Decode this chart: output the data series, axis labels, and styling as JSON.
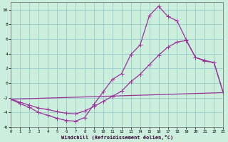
{
  "xlabel": "Windchill (Refroidissement éolien,°C)",
  "background_color": "#cceedd",
  "grid_color": "#99cccc",
  "line_color": "#993399",
  "xlim": [
    0,
    23
  ],
  "ylim": [
    -6,
    11
  ],
  "xticks": [
    0,
    1,
    2,
    3,
    4,
    5,
    6,
    7,
    8,
    9,
    10,
    11,
    12,
    13,
    14,
    15,
    16,
    17,
    18,
    19,
    20,
    21,
    22,
    23
  ],
  "yticks": [
    -6,
    -4,
    -2,
    0,
    2,
    4,
    6,
    8,
    10
  ],
  "line1_x": [
    0,
    1,
    2,
    3,
    4,
    5,
    6,
    7,
    8,
    9,
    10,
    11,
    12,
    13,
    14,
    15,
    16,
    17,
    18,
    19,
    20,
    21,
    22,
    23
  ],
  "line1_y": [
    -2.2,
    -2.8,
    -3.3,
    -4.0,
    -4.4,
    -4.8,
    -5.1,
    -5.2,
    -4.7,
    -2.9,
    -1.2,
    0.5,
    1.3,
    3.9,
    5.2,
    9.2,
    10.5,
    9.1,
    8.5,
    5.9,
    3.5,
    3.0,
    2.8,
    -1.3
  ],
  "line2_x": [
    0,
    1,
    2,
    3,
    4,
    5,
    6,
    7,
    8,
    9,
    10,
    11,
    12,
    13,
    14,
    15,
    16,
    17,
    18,
    19,
    20,
    21,
    22,
    23
  ],
  "line2_y": [
    -2.2,
    -2.6,
    -3.0,
    -3.4,
    -3.6,
    -3.9,
    -4.1,
    -4.2,
    -3.8,
    -3.2,
    -2.5,
    -1.8,
    -1.1,
    0.2,
    1.2,
    2.5,
    3.8,
    4.9,
    5.6,
    5.8,
    3.5,
    3.1,
    2.8,
    -1.3
  ],
  "line3_x": [
    0,
    23
  ],
  "line3_y": [
    -2.2,
    -1.3
  ]
}
